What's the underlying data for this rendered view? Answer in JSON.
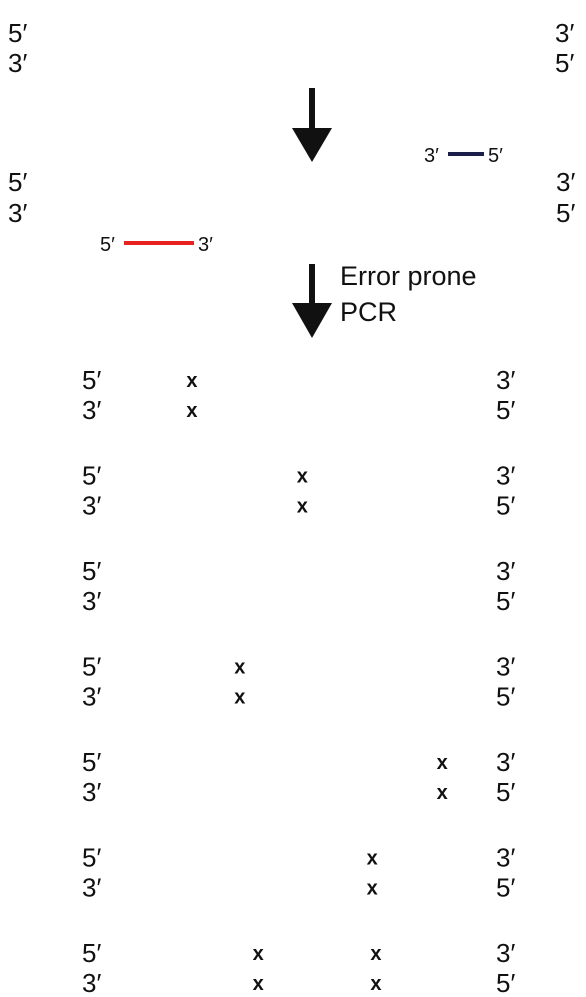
{
  "colors": {
    "top_strand": "#e8231f",
    "bottom_strand": "#1c1e4a",
    "arrow": "#111111",
    "mutation": "#2d6a1a",
    "text": "#111111"
  },
  "template": {
    "top": {
      "left_label": "5′",
      "right_label": "3′"
    },
    "bottom": {
      "left_label": "3′",
      "right_label": "5′"
    }
  },
  "primers": {
    "reverse": {
      "left_label": "3′",
      "right_label": "5′"
    },
    "forward": {
      "left_label": "5′",
      "right_label": "3′"
    }
  },
  "step_label": {
    "line1": "Error prone",
    "line2": "PCR"
  },
  "mutation_mark": "x",
  "products": [
    {
      "top_left": "5′",
      "top_right": "3′",
      "bottom_left": "3′",
      "bottom_right": "5′",
      "mutations": [
        0.19
      ]
    },
    {
      "top_left": "5′",
      "top_right": "3′",
      "bottom_left": "3′",
      "bottom_right": "5′",
      "mutations": [
        0.49
      ]
    },
    {
      "top_left": "5′",
      "top_right": "3′",
      "bottom_left": "3′",
      "bottom_right": "5′",
      "mutations": []
    },
    {
      "top_left": "5′",
      "top_right": "3′",
      "bottom_left": "3′",
      "bottom_right": "5′",
      "mutations": [
        0.32
      ]
    },
    {
      "top_left": "5′",
      "top_right": "3′",
      "bottom_left": "3′",
      "bottom_right": "5′",
      "mutations": [
        0.87
      ]
    },
    {
      "top_left": "5′",
      "top_right": "3′",
      "bottom_left": "3′",
      "bottom_right": "5′",
      "mutations": [
        0.68
      ]
    },
    {
      "top_left": "5′",
      "top_right": "3′",
      "bottom_left": "3′",
      "bottom_right": "5′",
      "mutations": [
        0.37,
        0.69
      ]
    }
  ]
}
